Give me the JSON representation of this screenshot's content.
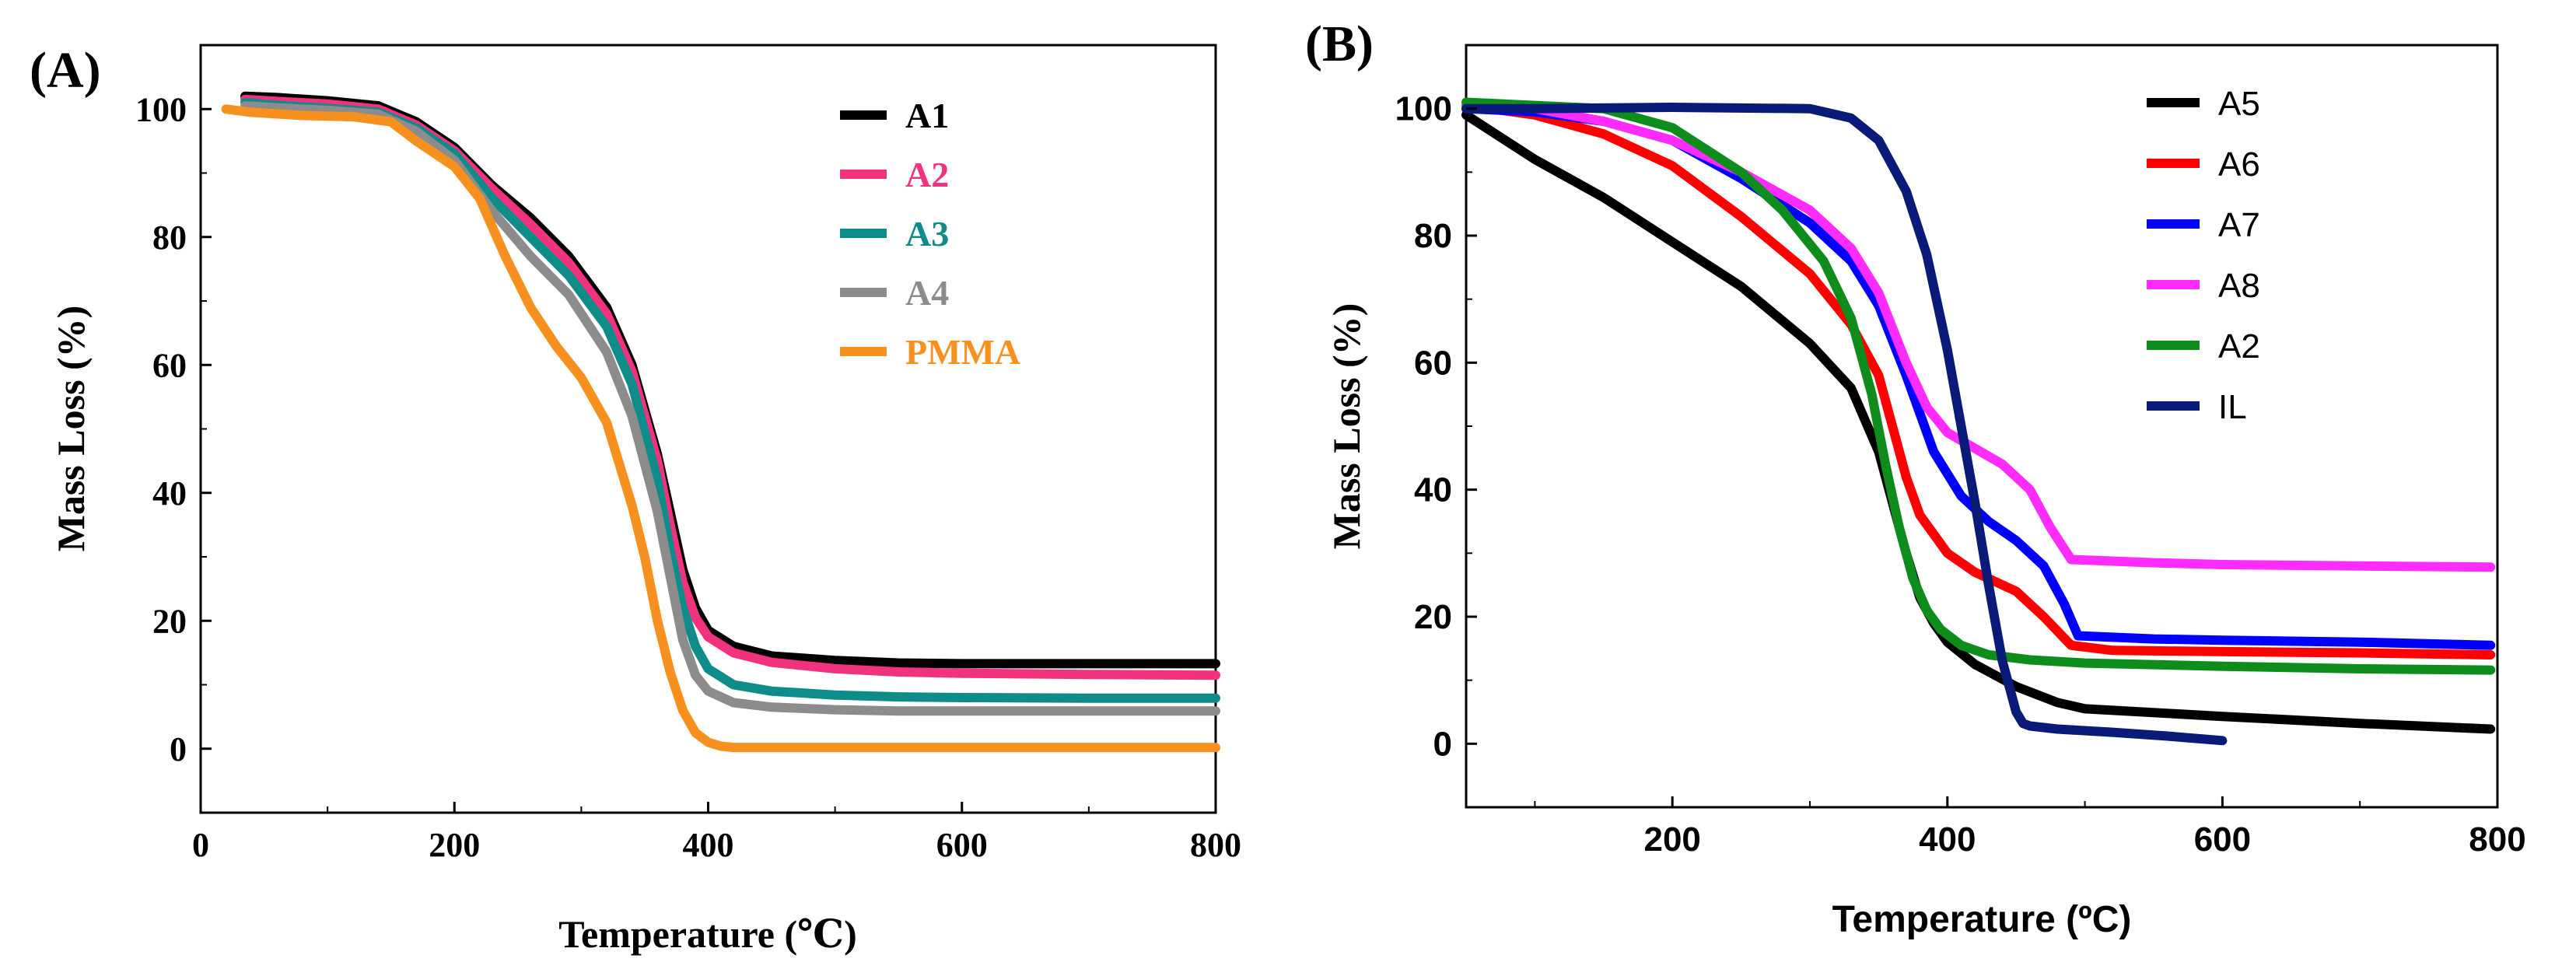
{
  "chart_data": [
    {
      "panel_label": "(A)",
      "type": "line",
      "title": "",
      "xlabel": "Temperature (℃)",
      "ylabel": "Mass Loss (%)",
      "xlim": [
        0,
        800
      ],
      "ylim": [
        -10,
        110
      ],
      "xticks": [
        0,
        200,
        400,
        600,
        800
      ],
      "yticks": [
        0,
        20,
        40,
        60,
        80,
        100
      ],
      "xtick_labels": [
        "0",
        "200",
        "400",
        "600",
        "800"
      ],
      "ytick_labels": [
        "0",
        "20",
        "40",
        "60",
        "80",
        "100"
      ],
      "legend_position": "top-right",
      "series": [
        {
          "name": "A1",
          "color": "#000000",
          "x": [
            35,
            60,
            100,
            140,
            170,
            200,
            230,
            260,
            290,
            320,
            340,
            360,
            370,
            380,
            390,
            400,
            420,
            450,
            500,
            550,
            600,
            700,
            800
          ],
          "y": [
            102,
            101.8,
            101.3,
            100.5,
            98,
            94,
            88,
            83,
            77,
            69,
            60,
            46,
            37,
            28,
            22,
            18.5,
            16,
            14.5,
            13.8,
            13.4,
            13.3,
            13.3,
            13.3
          ]
        },
        {
          "name": "A2",
          "color": "#f0327f",
          "x": [
            35,
            60,
            100,
            140,
            170,
            200,
            230,
            260,
            290,
            320,
            340,
            360,
            370,
            380,
            390,
            400,
            420,
            450,
            500,
            550,
            600,
            700,
            800
          ],
          "y": [
            101.5,
            101.2,
            100.8,
            100,
            97.5,
            93.5,
            87.5,
            82,
            76,
            68,
            59,
            45,
            35,
            26,
            20.5,
            17.5,
            15,
            13.5,
            12.5,
            12,
            11.8,
            11.6,
            11.5
          ]
        },
        {
          "name": "A3",
          "color": "#0e8c8a",
          "x": [
            35,
            60,
            100,
            140,
            170,
            200,
            230,
            260,
            290,
            320,
            340,
            360,
            370,
            380,
            390,
            400,
            420,
            450,
            500,
            550,
            600,
            700,
            800
          ],
          "y": [
            101,
            100.6,
            100.1,
            99.5,
            97,
            93,
            86,
            80,
            74,
            66,
            57,
            42,
            31,
            22,
            16,
            12.5,
            10,
            9,
            8.4,
            8.1,
            8,
            7.9,
            7.9
          ]
        },
        {
          "name": "A4",
          "color": "#8c8c8c",
          "x": [
            35,
            60,
            100,
            140,
            170,
            200,
            230,
            260,
            290,
            320,
            340,
            360,
            370,
            380,
            390,
            400,
            420,
            450,
            500,
            550,
            600,
            700,
            800
          ],
          "y": [
            100.5,
            100.2,
            99.8,
            99.2,
            96.5,
            92,
            84,
            77,
            71,
            62,
            52,
            37,
            27,
            17,
            11.5,
            9,
            7.2,
            6.5,
            6.1,
            5.9,
            5.9,
            5.9,
            5.9
          ]
        },
        {
          "name": "PMMA",
          "color": "#f7901e",
          "x": [
            20,
            40,
            80,
            120,
            150,
            170,
            200,
            220,
            240,
            260,
            280,
            300,
            320,
            340,
            350,
            360,
            370,
            380,
            390,
            400,
            410,
            420,
            450,
            500,
            600,
            700,
            800
          ],
          "y": [
            100,
            99.5,
            99,
            98.8,
            98,
            95,
            91,
            86,
            77,
            69,
            63,
            58,
            51,
            38,
            30,
            20,
            12,
            6,
            2.5,
            1,
            0.4,
            0.2,
            0.2,
            0.2,
            0.2,
            0.2,
            0.2
          ]
        }
      ]
    },
    {
      "panel_label": "(B)",
      "type": "line",
      "title": "",
      "xlabel": "Temperature (ºC)",
      "ylabel": "Mass Loss (%)",
      "xlim": [
        50,
        800
      ],
      "ylim": [
        -10,
        110
      ],
      "xticks": [
        200,
        400,
        600,
        800
      ],
      "yticks": [
        0,
        20,
        40,
        60,
        80,
        100
      ],
      "xtick_labels": [
        "200",
        "400",
        "600",
        "800"
      ],
      "ytick_labels": [
        "0",
        "20",
        "40",
        "60",
        "80",
        "100"
      ],
      "legend_position": "top-right",
      "series": [
        {
          "name": "A5",
          "color": "#000000",
          "x": [
            50,
            100,
            150,
            200,
            250,
            300,
            330,
            350,
            360,
            370,
            380,
            390,
            400,
            420,
            450,
            480,
            500,
            600,
            700,
            795
          ],
          "y": [
            99,
            92,
            86,
            79,
            72,
            63,
            56,
            46,
            38,
            30,
            23,
            19,
            16,
            12.5,
            9,
            6.5,
            5.5,
            4.3,
            3.2,
            2.3
          ]
        },
        {
          "name": "A6",
          "color": "#ff0000",
          "x": [
            50,
            100,
            150,
            200,
            250,
            300,
            330,
            350,
            360,
            370,
            380,
            400,
            420,
            450,
            470,
            490,
            520,
            600,
            700,
            795
          ],
          "y": [
            100.5,
            99,
            96,
            91,
            83,
            74,
            66,
            58,
            50,
            42,
            36,
            30,
            27,
            24,
            20,
            15.5,
            14.7,
            14.5,
            14.3,
            14
          ]
        },
        {
          "name": "A7",
          "color": "#0000ff",
          "x": [
            50,
            100,
            150,
            200,
            250,
            300,
            330,
            350,
            370,
            390,
            410,
            430,
            450,
            470,
            485,
            495,
            550,
            600,
            700,
            795
          ],
          "y": [
            100,
            99.5,
            98,
            95,
            89,
            82,
            76,
            69,
            58,
            46,
            39,
            35,
            32,
            28,
            22,
            17,
            16.5,
            16.3,
            16,
            15.5
          ]
        },
        {
          "name": "A8",
          "color": "#ff2bff",
          "x": [
            50,
            100,
            150,
            200,
            250,
            300,
            330,
            350,
            370,
            385,
            400,
            420,
            440,
            460,
            475,
            490,
            550,
            600,
            700,
            795
          ],
          "y": [
            100.5,
            100,
            98,
            95,
            90,
            84,
            78,
            71,
            60,
            53,
            49,
            46.5,
            44,
            40,
            34,
            29,
            28.5,
            28.2,
            28,
            27.8
          ]
        },
        {
          "name": "A2",
          "color": "#0e8c1c",
          "x": [
            50,
            100,
            150,
            200,
            250,
            280,
            310,
            330,
            345,
            355,
            365,
            375,
            385,
            395,
            410,
            430,
            460,
            500,
            600,
            700,
            795
          ],
          "y": [
            101,
            100.5,
            100,
            97,
            90,
            84,
            76,
            67,
            55,
            44,
            34,
            26,
            21,
            18,
            15.5,
            14,
            13.2,
            12.7,
            12.2,
            11.8,
            11.6
          ]
        },
        {
          "name": "IL",
          "color": "#0a1a78",
          "x": [
            50,
            100,
            200,
            300,
            330,
            350,
            370,
            385,
            400,
            410,
            420,
            430,
            440,
            450,
            455,
            460,
            480,
            520,
            560,
            600
          ],
          "y": [
            100,
            100,
            100.2,
            100,
            98.5,
            95,
            87,
            77,
            62,
            50,
            38,
            25,
            13,
            5,
            3.2,
            2.8,
            2.3,
            1.8,
            1.2,
            0.5
          ]
        }
      ]
    }
  ]
}
